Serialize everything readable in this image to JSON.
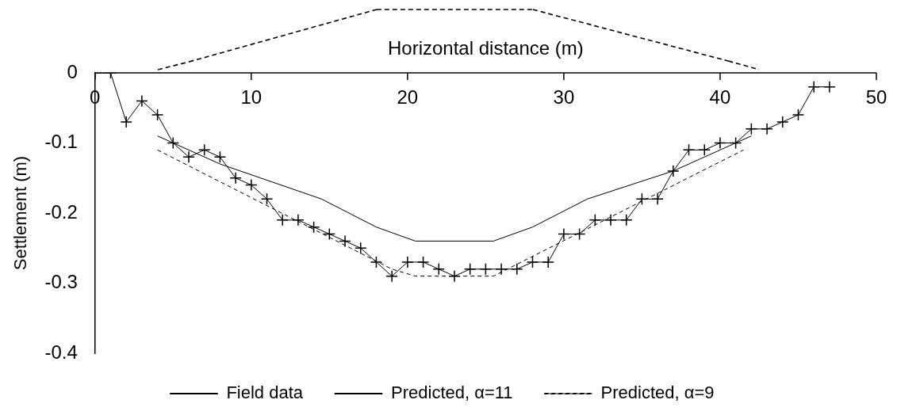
{
  "chart_data": {
    "type": "line",
    "xlabel": "Horizontal distance (m)",
    "ylabel": "Settlement (m)",
    "xlim": [
      0,
      50
    ],
    "xticks": [
      0,
      10,
      20,
      30,
      40,
      50
    ],
    "ylim": [
      -0.4,
      0
    ],
    "yticks": [
      0,
      -0.1,
      -0.2,
      -0.3,
      -0.4
    ],
    "grid": false,
    "legend": "bottom",
    "series": [
      {
        "name": "Field data",
        "color": "#000000",
        "marker": "cross",
        "line_style": "solid",
        "x": [
          0,
          1,
          2,
          3,
          4,
          5,
          6,
          7,
          8,
          9,
          10,
          11,
          12,
          13,
          14,
          15,
          16,
          17,
          18,
          19,
          20,
          21,
          22,
          23,
          24,
          25,
          26,
          27,
          28,
          29,
          30,
          31,
          32,
          33,
          34,
          35,
          36,
          37,
          38,
          39,
          40,
          41,
          42,
          43,
          44,
          45,
          46,
          47
        ],
        "values": [
          0,
          0,
          -0.07,
          -0.04,
          -0.06,
          -0.1,
          -0.12,
          -0.11,
          -0.12,
          -0.15,
          -0.16,
          -0.18,
          -0.21,
          -0.21,
          -0.22,
          -0.23,
          -0.24,
          -0.25,
          -0.27,
          -0.29,
          -0.27,
          -0.27,
          -0.28,
          -0.29,
          -0.28,
          -0.28,
          -0.28,
          -0.28,
          -0.27,
          -0.27,
          -0.23,
          -0.23,
          -0.21,
          -0.21,
          -0.21,
          -0.18,
          -0.18,
          -0.14,
          -0.11,
          -0.11,
          -0.1,
          -0.1,
          -0.08,
          -0.08,
          -0.07,
          -0.06,
          -0.02,
          -0.02
        ]
      },
      {
        "name": "Predicted, α=11",
        "color": "#000000",
        "marker": "none",
        "line_style": "solid",
        "x": [
          4,
          5,
          8,
          14.5,
          18,
          20.5,
          25.5,
          28,
          31.5,
          37,
          42
        ],
        "values": [
          -0.09,
          -0.1,
          -0.13,
          -0.18,
          -0.22,
          -0.24,
          -0.24,
          -0.22,
          -0.18,
          -0.14,
          -0.09
        ]
      },
      {
        "name": "Predicted, α=9",
        "color": "#000000",
        "marker": "none",
        "line_style": "dashed",
        "x": [
          4,
          19,
          20.5,
          25.5,
          41.5
        ],
        "values": [
          -0.11,
          -0.28,
          -0.29,
          -0.29,
          -0.11
        ]
      }
    ]
  }
}
